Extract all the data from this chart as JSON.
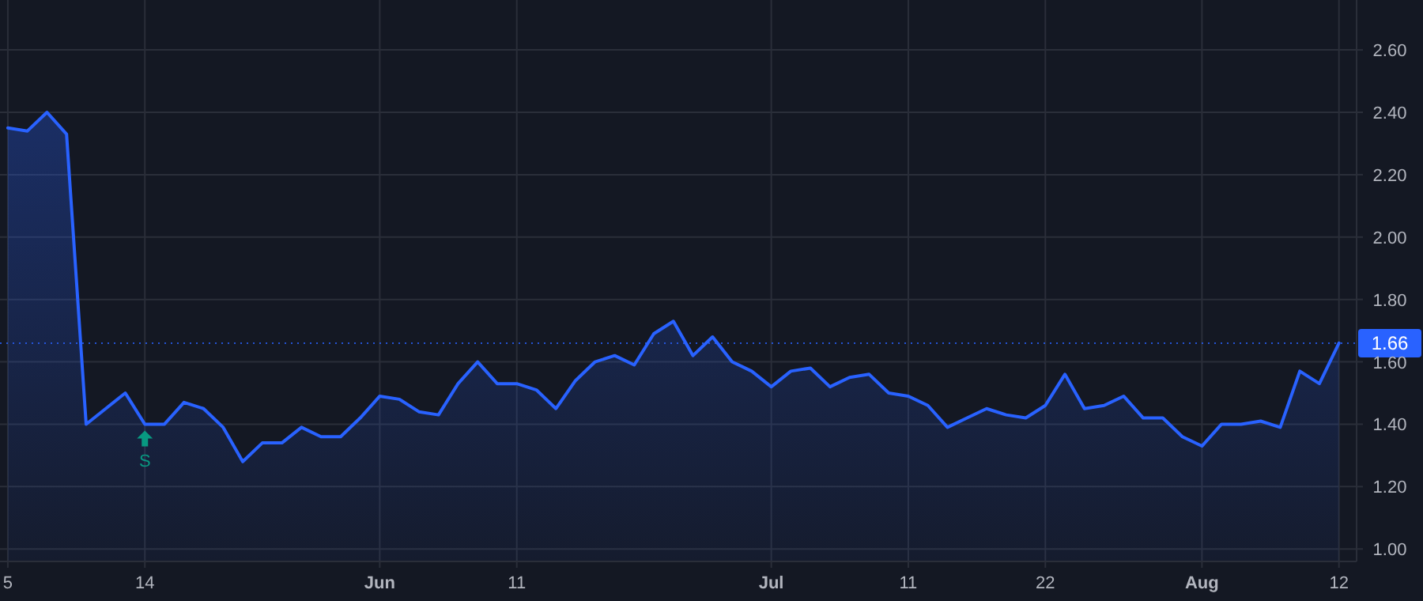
{
  "chart_data": {
    "type": "area",
    "categories": [
      "5",
      null,
      null,
      null,
      null,
      null,
      null,
      "14",
      null,
      null,
      null,
      null,
      null,
      null,
      null,
      null,
      null,
      null,
      null,
      "Jun",
      null,
      null,
      null,
      null,
      null,
      null,
      "11",
      null,
      null,
      null,
      null,
      null,
      null,
      null,
      null,
      null,
      null,
      null,
      null,
      "Jul",
      null,
      null,
      null,
      null,
      null,
      null,
      "11",
      null,
      null,
      null,
      null,
      null,
      null,
      "22",
      null,
      null,
      null,
      null,
      null,
      null,
      null,
      "Aug",
      null,
      null,
      null,
      null,
      null,
      null,
      "12"
    ],
    "series": [
      {
        "color": "#2962ff",
        "values": [
          2.35,
          2.34,
          2.4,
          2.33,
          1.4,
          1.45,
          1.5,
          1.4,
          1.4,
          1.47,
          1.45,
          1.39,
          1.28,
          1.34,
          1.34,
          1.39,
          1.36,
          1.36,
          1.42,
          1.49,
          1.48,
          1.44,
          1.43,
          1.53,
          1.6,
          1.53,
          1.53,
          1.51,
          1.45,
          1.54,
          1.6,
          1.62,
          1.59,
          1.69,
          1.73,
          1.62,
          1.68,
          1.6,
          1.57,
          1.52,
          1.57,
          1.58,
          1.52,
          1.55,
          1.56,
          1.5,
          1.49,
          1.46,
          1.39,
          1.42,
          1.45,
          1.43,
          1.42,
          1.46,
          1.56,
          1.45,
          1.46,
          1.49,
          1.42,
          1.42,
          1.36,
          1.33,
          1.4,
          1.4,
          1.41,
          1.39,
          1.57,
          1.53,
          1.66
        ]
      }
    ],
    "ylim": [
      0.96,
      2.76
    ],
    "yticks": [
      {
        "value": 1,
        "label": "1.00"
      },
      {
        "value": 1.2,
        "label": "1.20"
      },
      {
        "value": 1.4,
        "label": "1.40"
      },
      {
        "value": 1.6,
        "label": "1.60"
      },
      {
        "value": 1.8,
        "label": "1.80"
      },
      {
        "value": 2,
        "label": "2.00"
      },
      {
        "value": 2.2,
        "label": "2.20"
      },
      {
        "value": 2.4,
        "label": "2.40"
      },
      {
        "value": 2.6,
        "label": "2.60"
      }
    ],
    "grid": true,
    "ref_lines": [
      {
        "axis": "y",
        "value": 1.66,
        "label": "1.66",
        "color": "#2962ff",
        "line_style": "dotted"
      }
    ],
    "annotations": [
      {
        "text": "S",
        "x": "14",
        "y": 1.4
      }
    ]
  }
}
